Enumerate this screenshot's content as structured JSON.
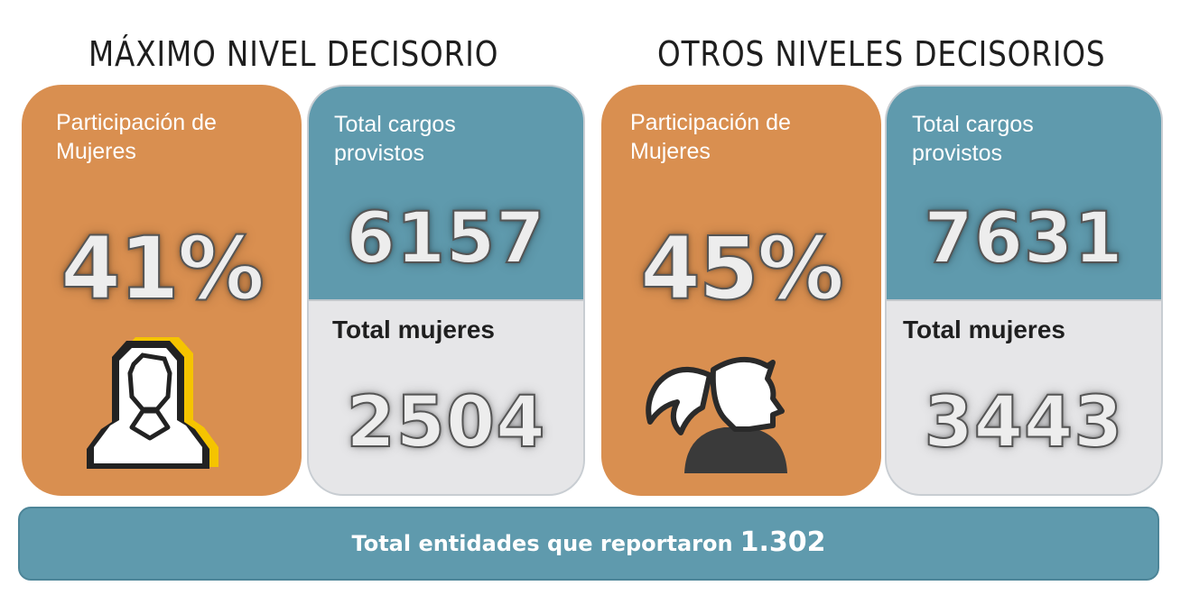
{
  "sections": {
    "maximo": {
      "title": "MÁXIMO NIVEL DECISORIO",
      "participation_label": "Participación de Mujeres",
      "participation_label_l1": "Participación de",
      "participation_label_l2": "Mujeres",
      "participation_value": "41%",
      "total_cargos_label_l1": "Total cargos",
      "total_cargos_label_l2": "provistos",
      "total_cargos_value": "6157",
      "total_mujeres_label": "Total mujeres",
      "total_mujeres_value": "2504",
      "icon": "woman-outline-icon"
    },
    "otros": {
      "title": "OTROS NIVELES DECISORIOS",
      "participation_label_l1": "Participación de",
      "participation_label_l2": "Mujeres",
      "participation_value": "45%",
      "total_cargos_label_l1": "Total cargos",
      "total_cargos_label_l2": "provistos",
      "total_cargos_value": "7631",
      "total_mujeres_label": "Total mujeres",
      "total_mujeres_value": "3443",
      "icon": "woman-ponytail-icon"
    }
  },
  "footer": {
    "label": "Total entidades que reportaron",
    "value": "1.302"
  },
  "colors": {
    "orange": "#d98f50",
    "teal": "#5f9aad",
    "light_gray": "#e6e6e8"
  }
}
